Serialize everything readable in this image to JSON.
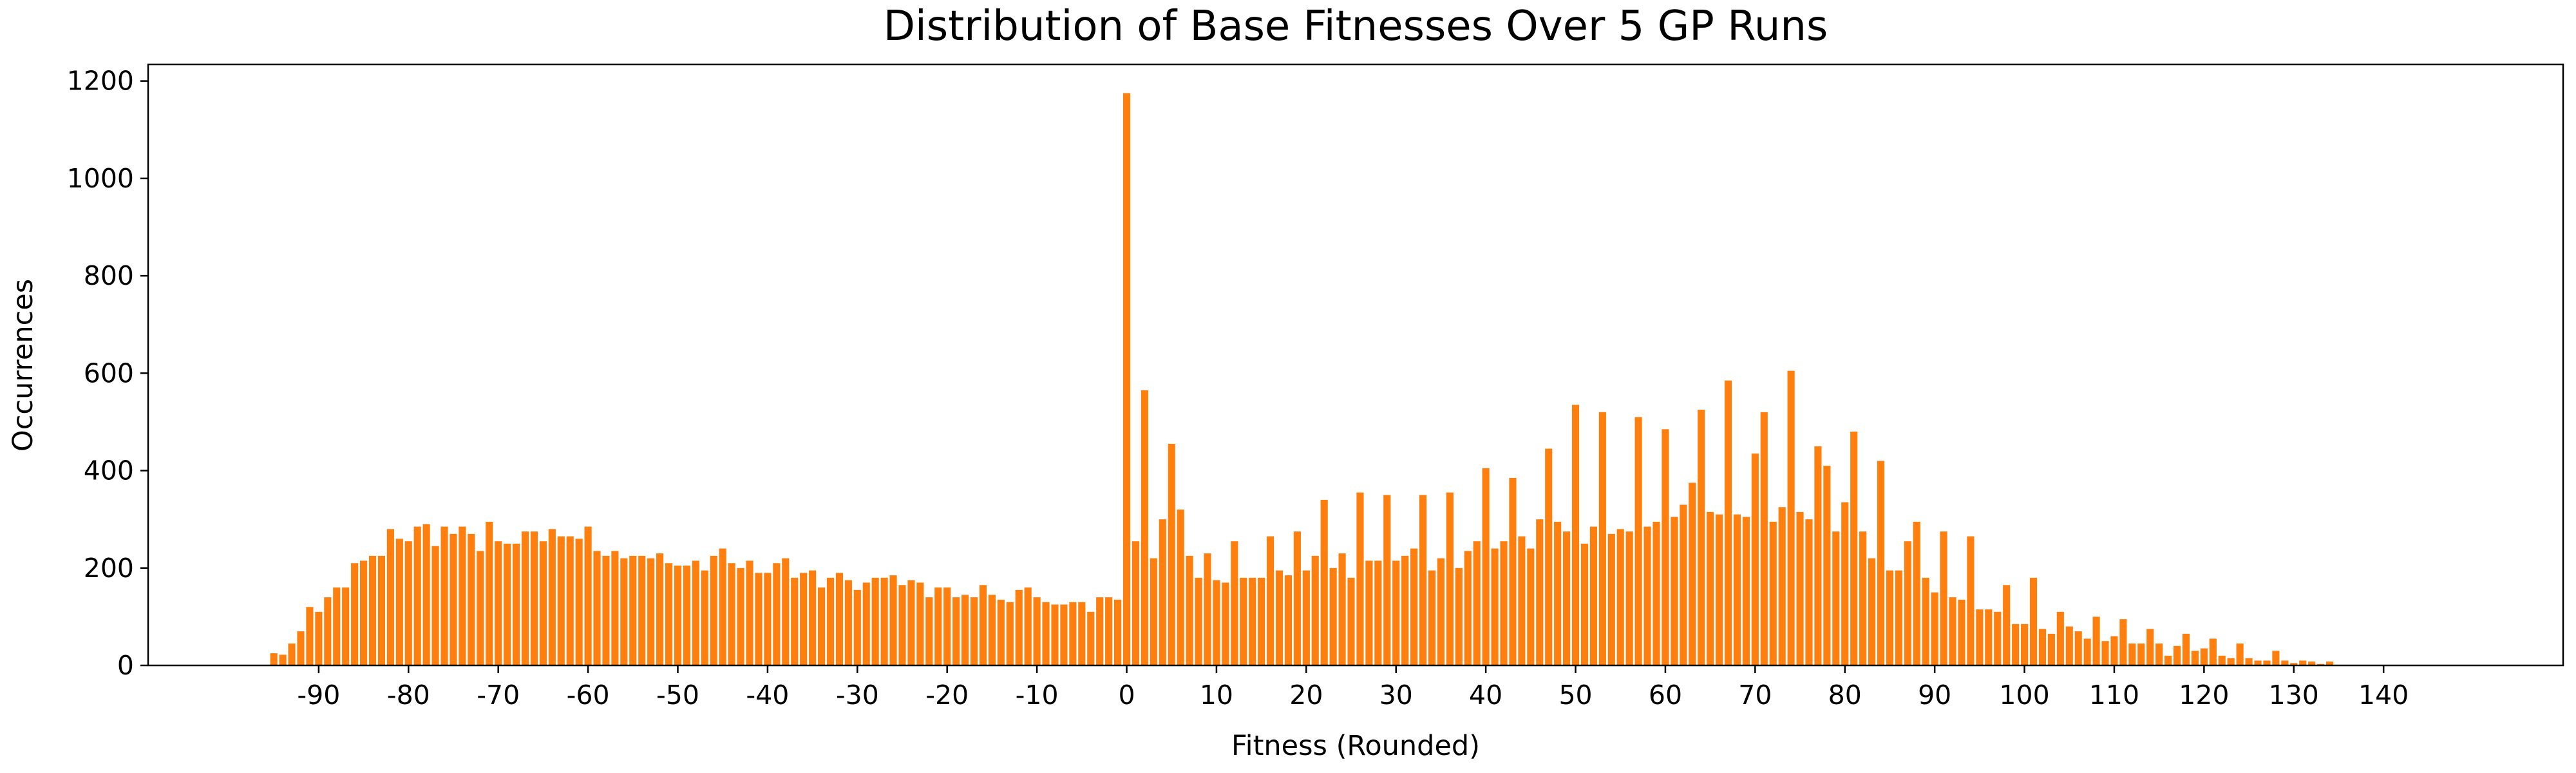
{
  "chart_data": {
    "type": "bar",
    "title": "Distribution of Base Fitnesses Over 5 GP Runs",
    "xlabel": "Fitness (Rounded)",
    "ylabel": "Occurrences",
    "color": "#ff7f0e",
    "xlim": [
      -109,
      160
    ],
    "ylim": [
      0,
      1234
    ],
    "xticks": [
      -90,
      -80,
      -70,
      -60,
      -50,
      -40,
      -30,
      -20,
      -10,
      0,
      10,
      20,
      30,
      40,
      50,
      60,
      70,
      80,
      90,
      100,
      110,
      120,
      130,
      140
    ],
    "yticks": [
      0,
      200,
      400,
      600,
      800,
      1000,
      1200
    ],
    "x": [
      -95,
      -94,
      -93,
      -92,
      -91,
      -90,
      -89,
      -88,
      -87,
      -86,
      -85,
      -84,
      -83,
      -82,
      -81,
      -80,
      -79,
      -78,
      -77,
      -76,
      -75,
      -74,
      -73,
      -72,
      -71,
      -70,
      -69,
      -68,
      -67,
      -66,
      -65,
      -64,
      -63,
      -62,
      -61,
      -60,
      -59,
      -58,
      -57,
      -56,
      -55,
      -54,
      -53,
      -52,
      -51,
      -50,
      -49,
      -48,
      -47,
      -46,
      -45,
      -44,
      -43,
      -42,
      -41,
      -40,
      -39,
      -38,
      -37,
      -36,
      -35,
      -34,
      -33,
      -32,
      -31,
      -30,
      -29,
      -28,
      -27,
      -26,
      -25,
      -24,
      -23,
      -22,
      -21,
      -20,
      -19,
      -18,
      -17,
      -16,
      -15,
      -14,
      -13,
      -12,
      -11,
      -10,
      -9,
      -8,
      -7,
      -6,
      -5,
      -4,
      -3,
      -2,
      -1,
      0,
      1,
      2,
      3,
      4,
      5,
      6,
      7,
      8,
      9,
      10,
      11,
      12,
      13,
      14,
      15,
      16,
      17,
      18,
      19,
      20,
      21,
      22,
      23,
      24,
      25,
      26,
      27,
      28,
      29,
      30,
      31,
      32,
      33,
      34,
      35,
      36,
      37,
      38,
      39,
      40,
      41,
      42,
      43,
      44,
      45,
      46,
      47,
      48,
      49,
      50,
      51,
      52,
      53,
      54,
      55,
      56,
      57,
      58,
      59,
      60,
      61,
      62,
      63,
      64,
      65,
      66,
      67,
      68,
      69,
      70,
      71,
      72,
      73,
      74,
      75,
      76,
      77,
      78,
      79,
      80,
      81,
      82,
      83,
      84,
      85,
      86,
      87,
      88,
      89,
      90,
      91,
      92,
      93,
      94,
      95,
      96,
      97,
      98,
      99,
      100,
      101,
      102,
      103,
      104,
      105,
      106,
      107,
      108,
      109,
      110,
      111,
      112,
      113,
      114,
      115,
      116,
      117,
      118,
      119,
      120,
      121,
      122,
      123,
      124,
      125,
      126,
      127,
      128,
      129,
      130,
      131,
      132,
      133,
      134
    ],
    "values": [
      25,
      22,
      45,
      70,
      120,
      110,
      140,
      160,
      160,
      210,
      215,
      225,
      225,
      280,
      260,
      255,
      285,
      290,
      245,
      285,
      270,
      285,
      270,
      235,
      295,
      255,
      250,
      250,
      275,
      275,
      255,
      280,
      265,
      265,
      260,
      285,
      235,
      225,
      235,
      220,
      225,
      225,
      220,
      230,
      210,
      205,
      205,
      215,
      195,
      225,
      240,
      210,
      200,
      215,
      190,
      190,
      210,
      220,
      180,
      190,
      195,
      160,
      180,
      190,
      175,
      155,
      170,
      180,
      180,
      185,
      165,
      175,
      170,
      140,
      160,
      160,
      140,
      145,
      140,
      165,
      145,
      135,
      130,
      155,
      160,
      140,
      130,
      125,
      125,
      130,
      130,
      110,
      140,
      140,
      135,
      1175,
      255,
      565,
      220,
      300,
      455,
      320,
      225,
      180,
      230,
      175,
      170,
      255,
      180,
      180,
      180,
      265,
      195,
      185,
      275,
      195,
      225,
      340,
      200,
      230,
      180,
      355,
      215,
      215,
      350,
      215,
      225,
      240,
      350,
      195,
      220,
      355,
      200,
      235,
      255,
      405,
      240,
      255,
      385,
      265,
      240,
      300,
      445,
      295,
      275,
      535,
      250,
      285,
      520,
      270,
      280,
      275,
      510,
      285,
      295,
      485,
      305,
      330,
      375,
      525,
      315,
      310,
      585,
      310,
      305,
      435,
      520,
      295,
      325,
      605,
      315,
      300,
      450,
      410,
      275,
      335,
      480,
      275,
      220,
      420,
      195,
      195,
      255,
      295,
      180,
      150,
      275,
      140,
      135,
      265,
      115,
      115,
      110,
      165,
      85,
      85,
      180,
      75,
      65,
      110,
      80,
      70,
      55,
      100,
      50,
      60,
      95,
      45,
      45,
      75,
      45,
      20,
      40,
      65,
      30,
      35,
      55,
      20,
      15,
      45,
      15,
      10,
      10,
      30,
      10,
      5,
      10,
      8,
      3,
      8
    ]
  }
}
